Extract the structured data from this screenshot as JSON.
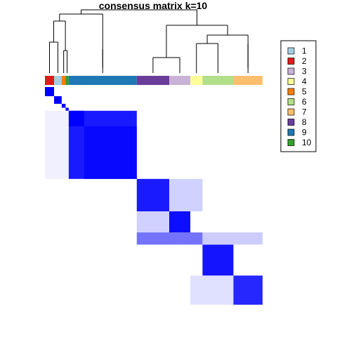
{
  "chart_data": {
    "type": "heatmap",
    "title": "consensus matrix k=10",
    "xlabel": "",
    "ylabel": "",
    "value_range": [
      0,
      1
    ],
    "colors": {
      "low": "#ffffff",
      "high": "#0000ff",
      "dendrogram": "#000000"
    },
    "legend_position": "right",
    "legend": [
      {
        "label": "1",
        "color": "#a6cee3"
      },
      {
        "label": "2",
        "color": "#e31a1c"
      },
      {
        "label": "3",
        "color": "#cab2d6"
      },
      {
        "label": "4",
        "color": "#ffff99"
      },
      {
        "label": "5",
        "color": "#ff7f00"
      },
      {
        "label": "6",
        "color": "#b2df8a"
      },
      {
        "label": "7",
        "color": "#fdbf6f"
      },
      {
        "label": "8",
        "color": "#6a3d9a"
      },
      {
        "label": "9",
        "color": "#1f78b4"
      },
      {
        "label": "10",
        "color": "#33a02c"
      }
    ],
    "column_cluster_order": [
      "2",
      "1",
      "5",
      "10",
      "9",
      "8",
      "3",
      "4",
      "6",
      "7"
    ],
    "column_cluster_share": [
      0.042,
      0.035,
      0.018,
      0.014,
      0.313,
      0.149,
      0.097,
      0.056,
      0.142,
      0.134
    ],
    "blocks": [
      {
        "rows": [
          0.0,
          0.042
        ],
        "cols": [
          0.0,
          0.042
        ],
        "value": 1.0
      },
      {
        "rows": [
          0.042,
          0.077
        ],
        "cols": [
          0.042,
          0.077
        ],
        "value": 1.0
      },
      {
        "rows": [
          0.077,
          0.095
        ],
        "cols": [
          0.077,
          0.095
        ],
        "value": 1.0
      },
      {
        "rows": [
          0.095,
          0.109
        ],
        "cols": [
          0.095,
          0.109
        ],
        "value": 1.0
      },
      {
        "rows": [
          0.109,
          0.422
        ],
        "cols": [
          0.109,
          0.422
        ],
        "value": 0.9
      },
      {
        "rows": [
          0.109,
          0.18
        ],
        "cols": [
          0.109,
          0.18
        ],
        "value": 1.0
      },
      {
        "rows": [
          0.18,
          0.422
        ],
        "cols": [
          0.18,
          0.422
        ],
        "value": 0.97
      },
      {
        "rows": [
          0.422,
          0.571
        ],
        "cols": [
          0.422,
          0.571
        ],
        "value": 0.9
      },
      {
        "rows": [
          0.571,
          0.668
        ],
        "cols": [
          0.571,
          0.668
        ],
        "value": 0.95
      },
      {
        "rows": [
          0.422,
          0.571
        ],
        "cols": [
          0.571,
          0.724
        ],
        "value": 0.18
      },
      {
        "rows": [
          0.571,
          0.724
        ],
        "cols": [
          0.422,
          0.571
        ],
        "value": 0.18
      },
      {
        "rows": [
          0.668,
          0.724
        ],
        "cols": [
          0.422,
          0.724
        ],
        "value": 0.55
      },
      {
        "rows": [
          0.724,
          0.866
        ],
        "cols": [
          0.724,
          0.866
        ],
        "value": 0.92
      },
      {
        "rows": [
          0.866,
          1.0
        ],
        "cols": [
          0.866,
          1.0
        ],
        "value": 0.85
      },
      {
        "rows": [
          0.866,
          1.0
        ],
        "cols": [
          0.668,
          0.866
        ],
        "value": 0.12
      },
      {
        "rows": [
          0.668,
          0.724
        ],
        "cols": [
          0.724,
          1.0
        ],
        "value": 0.2
      },
      {
        "rows": [
          0.109,
          0.422
        ],
        "cols": [
          0.0,
          0.109
        ],
        "value": 0.06
      }
    ]
  }
}
